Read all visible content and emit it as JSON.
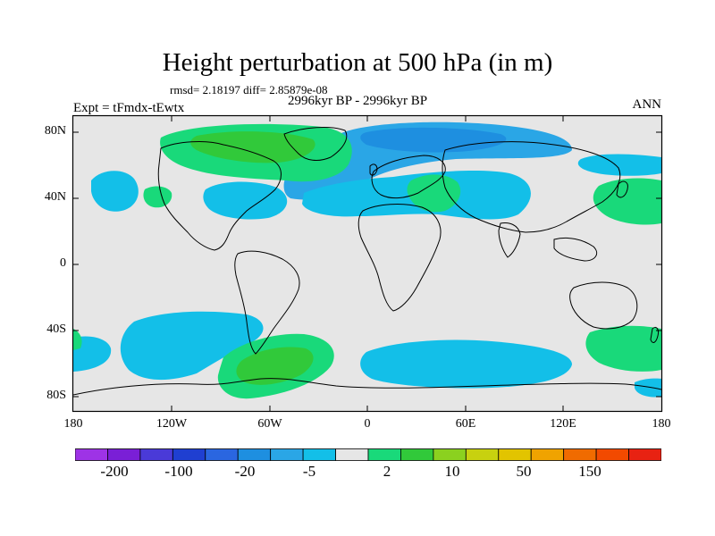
{
  "title": "Height perturbation at 500 hPa (in m)",
  "stats": "rmsd= 2.18197 diff= 2.85879e-08",
  "period": "2996kyr BP - 2996kyr BP",
  "experiment": "Expt = tFmdx-tEwtx",
  "season": "ANN",
  "lat_ticks": [
    "80N",
    "40N",
    "0",
    "40S",
    "80S"
  ],
  "lon_ticks": [
    "180",
    "120W",
    "60W",
    "0",
    "60E",
    "120E",
    "180"
  ],
  "colorbar": {
    "colors": [
      "#9e33e6",
      "#7a1fd6",
      "#4a3ad8",
      "#1f3fd1",
      "#2a66e0",
      "#1e8fe0",
      "#2aa6e6",
      "#13bfe8",
      "#e6e6e6",
      "#19d97a",
      "#31c93a",
      "#8bd11f",
      "#c8d10f",
      "#e2c400",
      "#f0a300",
      "#f06b00",
      "#f24a00",
      "#e82212"
    ],
    "labels": [
      "-200",
      "-100",
      "-20",
      "-5",
      "2",
      "10",
      "50",
      "150"
    ]
  },
  "field_colors": {
    "neutral": "#e6e6e6",
    "neg_light": "#13bfe8",
    "neg_mid": "#2aa6e6",
    "neg_strong": "#1e8fe0",
    "pos_light": "#19d97a",
    "pos_mid": "#31c93a"
  }
}
